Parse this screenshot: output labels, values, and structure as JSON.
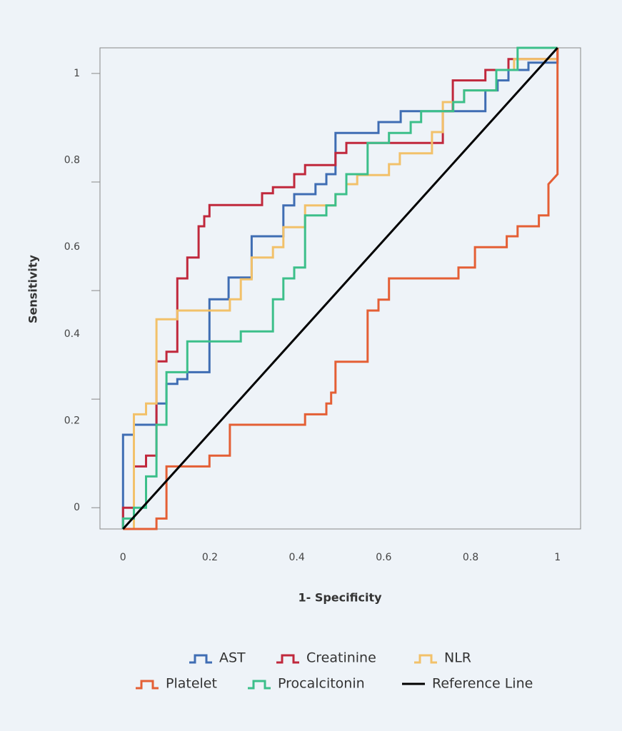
{
  "chart_data": {
    "type": "line",
    "xlabel": "1- Specificity",
    "ylabel": "Sensitivity",
    "xlim": [
      -0.053,
      1.053
    ],
    "ylim": [
      -0.049,
      1.059
    ],
    "xticks": [
      0,
      0.2,
      0.4,
      0.6,
      0.8,
      1
    ],
    "yticks": [
      0,
      0.2,
      0.4,
      0.6,
      0.8,
      1
    ],
    "ytick_marks": [
      0,
      0.25,
      0.5,
      0.75,
      1
    ],
    "series": [
      {
        "name": "AST",
        "color": "#3f6db3",
        "x": [
          0,
          0,
          0.025,
          0.025,
          0.077,
          0.077,
          0.1,
          0.1,
          0.125,
          0.125,
          0.148,
          0.148,
          0.199,
          0.199,
          0.243,
          0.243,
          0.296,
          0.296,
          0.369,
          0.369,
          0.394,
          0.394,
          0.443,
          0.443,
          0.468,
          0.468,
          0.489,
          0.489,
          0.588,
          0.588,
          0.639,
          0.639,
          0.834,
          0.834,
          0.862,
          0.862,
          0.887,
          0.887,
          0.933,
          0.933,
          1,
          1
        ],
        "values": [
          -0.049,
          0.168,
          0.168,
          0.191,
          0.191,
          0.24,
          0.24,
          0.285,
          0.285,
          0.296,
          0.296,
          0.312,
          0.312,
          0.48,
          0.48,
          0.53,
          0.53,
          0.625,
          0.625,
          0.696,
          0.696,
          0.722,
          0.722,
          0.745,
          0.745,
          0.768,
          0.768,
          0.863,
          0.863,
          0.888,
          0.888,
          0.913,
          0.913,
          0.961,
          0.961,
          0.984,
          0.984,
          1.008,
          1.008,
          1.025,
          1.025,
          1.059
        ]
      },
      {
        "name": "Creatinine",
        "color": "#c0283c",
        "x": [
          0,
          0,
          0.025,
          0.025,
          0.053,
          0.053,
          0.077,
          0.077,
          0.1,
          0.1,
          0.125,
          0.125,
          0.148,
          0.148,
          0.174,
          0.174,
          0.187,
          0.187,
          0.199,
          0.199,
          0.32,
          0.32,
          0.345,
          0.345,
          0.394,
          0.394,
          0.419,
          0.419,
          0.489,
          0.489,
          0.514,
          0.514,
          0.736,
          0.736,
          0.759,
          0.759,
          0.834,
          0.834,
          0.887,
          0.887,
          1,
          1
        ],
        "values": [
          -0.049,
          0,
          0,
          0.095,
          0.095,
          0.12,
          0.12,
          0.337,
          0.337,
          0.359,
          0.359,
          0.528,
          0.528,
          0.576,
          0.576,
          0.648,
          0.648,
          0.671,
          0.671,
          0.697,
          0.697,
          0.724,
          0.724,
          0.738,
          0.738,
          0.768,
          0.768,
          0.789,
          0.789,
          0.817,
          0.817,
          0.84,
          0.84,
          0.913,
          0.913,
          0.984,
          0.984,
          1.008,
          1.008,
          1.033,
          1.033,
          1.059
        ]
      },
      {
        "name": "NLR",
        "color": "#f2c16a",
        "x": [
          0.025,
          0.025,
          0.053,
          0.053,
          0.077,
          0.077,
          0.125,
          0.125,
          0.246,
          0.246,
          0.271,
          0.271,
          0.296,
          0.296,
          0.345,
          0.345,
          0.369,
          0.369,
          0.419,
          0.419,
          0.489,
          0.489,
          0.514,
          0.514,
          0.539,
          0.539,
          0.612,
          0.612,
          0.637,
          0.637,
          0.711,
          0.711,
          0.736,
          0.736,
          0.785,
          0.785,
          0.859,
          0.859,
          0.9,
          0.9,
          1,
          1
        ],
        "values": [
          -0.049,
          0.215,
          0.215,
          0.24,
          0.24,
          0.434,
          0.434,
          0.454,
          0.454,
          0.48,
          0.48,
          0.526,
          0.526,
          0.576,
          0.576,
          0.6,
          0.6,
          0.646,
          0.646,
          0.696,
          0.696,
          0.722,
          0.722,
          0.745,
          0.745,
          0.766,
          0.766,
          0.791,
          0.791,
          0.816,
          0.816,
          0.865,
          0.865,
          0.934,
          0.934,
          0.961,
          0.961,
          1.008,
          1.008,
          1.033,
          1.033,
          1.059
        ]
      },
      {
        "name": "Platelet",
        "color": "#e45f35",
        "x": [
          0,
          0.077,
          0.077,
          0.1,
          0.1,
          0.199,
          0.199,
          0.246,
          0.246,
          0.419,
          0.419,
          0.468,
          0.468,
          0.479,
          0.479,
          0.489,
          0.489,
          0.563,
          0.563,
          0.588,
          0.588,
          0.612,
          0.612,
          0.772,
          0.772,
          0.81,
          0.81,
          0.883,
          0.883,
          0.908,
          0.908,
          0.957,
          0.957,
          0.979,
          0.979,
          1,
          1
        ],
        "values": [
          -0.049,
          -0.049,
          -0.025,
          -0.025,
          0.095,
          0.095,
          0.12,
          0.12,
          0.191,
          0.191,
          0.215,
          0.215,
          0.24,
          0.24,
          0.265,
          0.265,
          0.336,
          0.336,
          0.454,
          0.454,
          0.479,
          0.479,
          0.528,
          0.528,
          0.553,
          0.553,
          0.6,
          0.6,
          0.625,
          0.625,
          0.648,
          0.648,
          0.673,
          0.673,
          0.745,
          0.768,
          1.059
        ]
      },
      {
        "name": "Procalcitonin",
        "color": "#3cbf8a",
        "x": [
          0,
          0,
          0.025,
          0.025,
          0.053,
          0.053,
          0.077,
          0.077,
          0.1,
          0.1,
          0.148,
          0.148,
          0.271,
          0.271,
          0.345,
          0.345,
          0.369,
          0.369,
          0.394,
          0.394,
          0.419,
          0.419,
          0.468,
          0.468,
          0.489,
          0.489,
          0.514,
          0.514,
          0.563,
          0.563,
          0.612,
          0.612,
          0.662,
          0.662,
          0.686,
          0.686,
          0.76,
          0.76,
          0.785,
          0.785,
          0.859,
          0.859,
          0.908,
          0.908,
          1
        ],
        "values": [
          -0.049,
          -0.025,
          -0.025,
          0,
          0,
          0.072,
          0.072,
          0.191,
          0.191,
          0.312,
          0.312,
          0.383,
          0.383,
          0.406,
          0.406,
          0.48,
          0.48,
          0.528,
          0.528,
          0.553,
          0.553,
          0.673,
          0.673,
          0.696,
          0.696,
          0.722,
          0.722,
          0.768,
          0.768,
          0.84,
          0.84,
          0.863,
          0.863,
          0.888,
          0.888,
          0.913,
          0.913,
          0.934,
          0.934,
          0.961,
          0.961,
          1.008,
          1.008,
          1.059,
          1.059
        ]
      },
      {
        "name": "Reference Line",
        "color": "#000000",
        "x": [
          0,
          1
        ],
        "values": [
          -0.049,
          1.059
        ]
      }
    ]
  }
}
